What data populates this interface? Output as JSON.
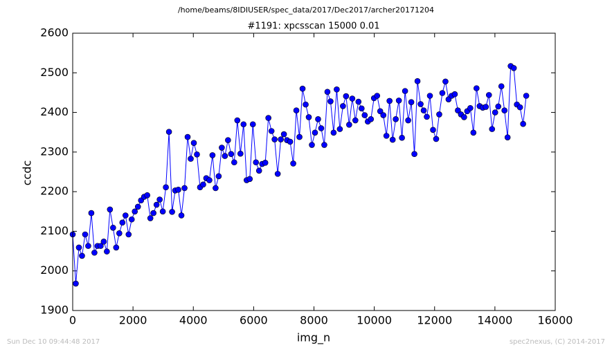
{
  "chart_data": {
    "type": "line",
    "suptitle": "/home/beams/8IDIUSER/spec_data/2017/Dec2017/archer20171204",
    "title": "#1191: xpcsscan 15000 0.01",
    "xlabel": "img_n",
    "ylabel": "ccdc",
    "footer_left": "Sun Dec 10 09:44:48 2017",
    "footer_right": "spec2nexus, (C) 2014-2017",
    "xlim": [
      0,
      16000
    ],
    "xticks": [
      0,
      2000,
      4000,
      6000,
      8000,
      10000,
      12000,
      14000,
      16000
    ],
    "ylim": [
      1900,
      2600
    ],
    "yticks": [
      1900,
      2000,
      2100,
      2200,
      2300,
      2400,
      2500,
      2600
    ],
    "x": [
      0,
      103,
      206,
      309,
      412,
      515,
      618,
      721,
      824,
      927,
      1030,
      1133,
      1236,
      1339,
      1442,
      1545,
      1648,
      1751,
      1854,
      1957,
      2060,
      2163,
      2266,
      2369,
      2472,
      2575,
      2678,
      2781,
      2884,
      2987,
      3090,
      3193,
      3296,
      3399,
      3502,
      3605,
      3708,
      3811,
      3914,
      4017,
      4120,
      4223,
      4326,
      4429,
      4532,
      4635,
      4738,
      4841,
      4944,
      5047,
      5150,
      5253,
      5356,
      5459,
      5562,
      5665,
      5768,
      5871,
      5974,
      6077,
      6180,
      6283,
      6386,
      6489,
      6592,
      6695,
      6798,
      6901,
      7004,
      7107,
      7210,
      7313,
      7416,
      7519,
      7622,
      7725,
      7828,
      7931,
      8034,
      8137,
      8240,
      8343,
      8446,
      8549,
      8652,
      8755,
      8858,
      8961,
      9064,
      9167,
      9270,
      9373,
      9476,
      9579,
      9682,
      9785,
      9888,
      9991,
      10094,
      10197,
      10300,
      10403,
      10506,
      10609,
      10712,
      10815,
      10918,
      11021,
      11124,
      11227,
      11330,
      11433,
      11536,
      11639,
      11742,
      11845,
      11948,
      12051,
      12154,
      12257,
      12360,
      12463,
      12566,
      12669,
      12772,
      12875,
      12978,
      13081,
      13184,
      13287,
      13390,
      13493,
      13596,
      13699,
      13802,
      13905,
      14008,
      14111,
      14214,
      14317,
      14420,
      14523,
      14626,
      14729,
      14832,
      14935,
      15038
    ],
    "values": [
      2092,
      1968,
      2059,
      2038,
      2092,
      2063,
      2146,
      2046,
      2063,
      2063,
      2074,
      2049,
      2155,
      2109,
      2059,
      2095,
      2122,
      2140,
      2092,
      2130,
      2150,
      2162,
      2178,
      2187,
      2191,
      2133,
      2146,
      2167,
      2180,
      2150,
      2211,
      2351,
      2149,
      2203,
      2205,
      2140,
      2209,
      2338,
      2283,
      2323,
      2294,
      2211,
      2218,
      2234,
      2229,
      2292,
      2209,
      2239,
      2311,
      2290,
      2330,
      2295,
      2274,
      2380,
      2296,
      2370,
      2229,
      2232,
      2370,
      2274,
      2253,
      2270,
      2273,
      2386,
      2353,
      2332,
      2245,
      2332,
      2345,
      2330,
      2326,
      2271,
      2405,
      2338,
      2460,
      2420,
      2388,
      2318,
      2349,
      2383,
      2360,
      2318,
      2452,
      2428,
      2349,
      2458,
      2358,
      2416,
      2441,
      2369,
      2435,
      2380,
      2427,
      2410,
      2393,
      2377,
      2383,
      2436,
      2442,
      2403,
      2393,
      2341,
      2429,
      2331,
      2383,
      2430,
      2336,
      2454,
      2380,
      2426,
      2295,
      2479,
      2421,
      2405,
      2389,
      2442,
      2356,
      2333,
      2395,
      2449,
      2478,
      2433,
      2442,
      2446,
      2405,
      2395,
      2388,
      2403,
      2411,
      2349,
      2461,
      2416,
      2412,
      2414,
      2444,
      2358,
      2400,
      2415,
      2466,
      2405,
      2337,
      2517,
      2512,
      2420,
      2413,
      2371,
      2442
    ],
    "color": "#0000ff",
    "marker_edge": "#000000",
    "grid": false
  }
}
